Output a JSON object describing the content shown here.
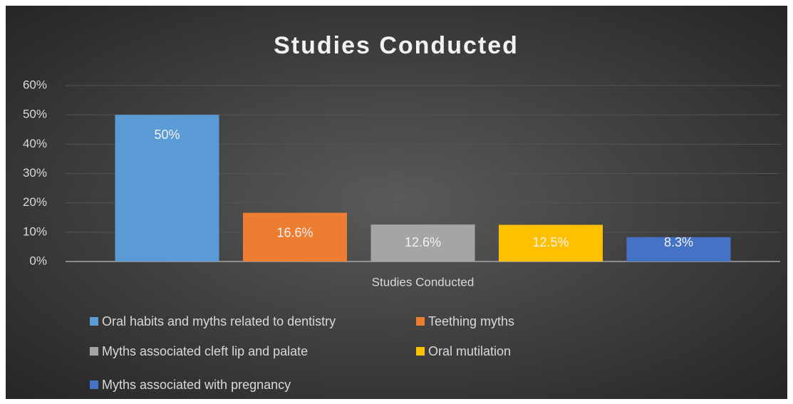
{
  "chart_data": {
    "type": "bar",
    "title": "Studies Conducted",
    "categories": [
      "Studies Conducted"
    ],
    "series": [
      {
        "name": "Oral habits and myths related to dentistry",
        "color": "#5b9bd5",
        "values": [
          50
        ],
        "value_labels": [
          "50%"
        ]
      },
      {
        "name": "Teething myths",
        "color": "#ed7d31",
        "values": [
          16.6
        ],
        "value_labels": [
          "16.6%"
        ]
      },
      {
        "name": "Myths associated cleft lip and palate",
        "color": "#a5a5a5",
        "values": [
          12.6
        ],
        "value_labels": [
          "12.6%"
        ]
      },
      {
        "name": "Oral mutilation",
        "color": "#ffc000",
        "values": [
          12.5
        ],
        "value_labels": [
          "12.5%"
        ]
      },
      {
        "name": "Myths associated with pregnancy",
        "color": "#4472c4",
        "values": [
          8.3
        ],
        "value_labels": [
          "8.3%"
        ]
      }
    ],
    "ylim": [
      0,
      60
    ],
    "yticks": [
      {
        "value": 0,
        "label": "0%"
      },
      {
        "value": 10,
        "label": "10%"
      },
      {
        "value": 20,
        "label": "20%"
      },
      {
        "value": 30,
        "label": "30%"
      },
      {
        "value": 40,
        "label": "40%"
      },
      {
        "value": 50,
        "label": "50%"
      },
      {
        "value": 60,
        "label": "60%"
      }
    ],
    "grid": true,
    "legend": "bottom"
  }
}
